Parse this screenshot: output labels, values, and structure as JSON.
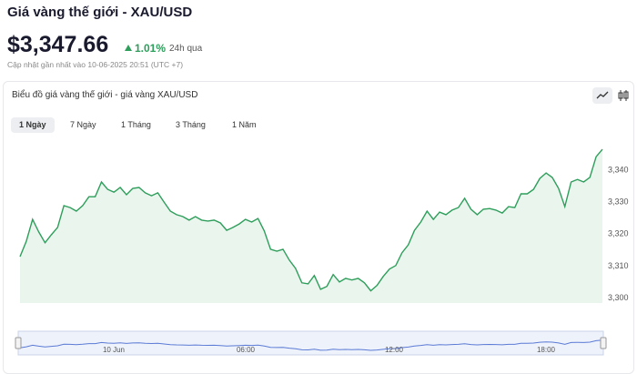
{
  "header": {
    "title": "Giá vàng thế giới - XAU/USD",
    "price": "$3,347.66",
    "change": "1.01%",
    "change_period": "24h qua",
    "updated": "Cập nhật gần nhất vào 10-06-2025 20:51 (UTC +7)"
  },
  "card": {
    "title": "Biểu đồ giá vàng thế giới - giá vàng XAU/USD",
    "tabs": [
      "1 Ngày",
      "7 Ngày",
      "1 Tháng",
      "3 Tháng",
      "1 Năm"
    ]
  },
  "chart_data": {
    "type": "line",
    "color": "#2e9e5b",
    "fill": "#e9f5ed",
    "values": [
      3313.0,
      3317.8,
      3324.6,
      3320.7,
      3317.3,
      3319.8,
      3322.1,
      3328.9,
      3328.3,
      3327.2,
      3328.9,
      3331.7,
      3331.7,
      3336.3,
      3334.0,
      3333.1,
      3334.6,
      3332.3,
      3334.3,
      3334.6,
      3332.9,
      3332.0,
      3332.9,
      3330.0,
      3327.2,
      3326.1,
      3325.5,
      3324.4,
      3325.5,
      3324.4,
      3324.1,
      3324.4,
      3323.5,
      3321.2,
      3322.1,
      3323.2,
      3324.6,
      3323.8,
      3324.9,
      3321.0,
      3315.3,
      3314.7,
      3315.3,
      3311.9,
      3309.3,
      3304.8,
      3304.5,
      3307.1,
      3302.8,
      3303.7,
      3307.4,
      3305.1,
      3306.2,
      3305.7,
      3306.2,
      3304.8,
      3302.3,
      3304.0,
      3306.8,
      3309.1,
      3310.2,
      3314.2,
      3316.7,
      3321.2,
      3323.8,
      3327.2,
      3324.6,
      3326.9,
      3326.1,
      3327.5,
      3328.3,
      3331.2,
      3327.8,
      3326.1,
      3327.8,
      3328.0,
      3327.5,
      3326.6,
      3328.6,
      3328.3,
      3332.6,
      3332.6,
      3334.0,
      3337.4,
      3339.1,
      3337.7,
      3334.3,
      3328.6,
      3336.3,
      3337.1,
      3336.3,
      3337.7,
      3344.2,
      3346.5
    ],
    "ylim": [
      3298.5,
      3350.5
    ],
    "yticks": [
      {
        "value": 3300,
        "label": "3,300"
      },
      {
        "value": 3310,
        "label": "3,310"
      },
      {
        "value": 3320,
        "label": "3,320"
      },
      {
        "value": 3330,
        "label": "3,330"
      },
      {
        "value": 3340,
        "label": "3,340"
      }
    ],
    "navigator_labels": [
      "10 Jun",
      "06:00",
      "12:00",
      "18:00"
    ]
  }
}
